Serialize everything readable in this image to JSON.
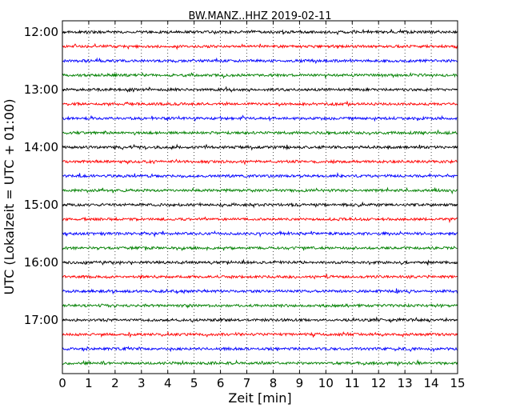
{
  "chart_data": {
    "type": "line",
    "title": "BW.MANZ..HHZ 2019-02-11",
    "xlabel": "Zeit  [min]",
    "ylabel": "UTC (Lokalzeit = UTC + 01:00)",
    "xlim": [
      0,
      15
    ],
    "xticks": [
      "0",
      "1",
      "2",
      "3",
      "4",
      "5",
      "6",
      "7",
      "8",
      "9",
      "10",
      "11",
      "12",
      "13",
      "14",
      "15"
    ],
    "yticks": [
      "12:00",
      "13:00",
      "14:00",
      "15:00",
      "16:00",
      "17:00"
    ],
    "vertical_grid": "dotted",
    "trace_interval_minutes": 15,
    "trace_start_times": [
      "12:00",
      "12:15",
      "12:30",
      "12:45",
      "13:00",
      "13:15",
      "13:30",
      "13:45",
      "14:00",
      "14:15",
      "14:30",
      "14:45",
      "15:00",
      "15:15",
      "15:30",
      "15:45",
      "16:00",
      "16:15",
      "16:30",
      "16:45",
      "17:00",
      "17:15",
      "17:30",
      "17:45"
    ],
    "color_cycle": [
      "#000000",
      "#ff0000",
      "#0000ff",
      "#008000"
    ]
  }
}
